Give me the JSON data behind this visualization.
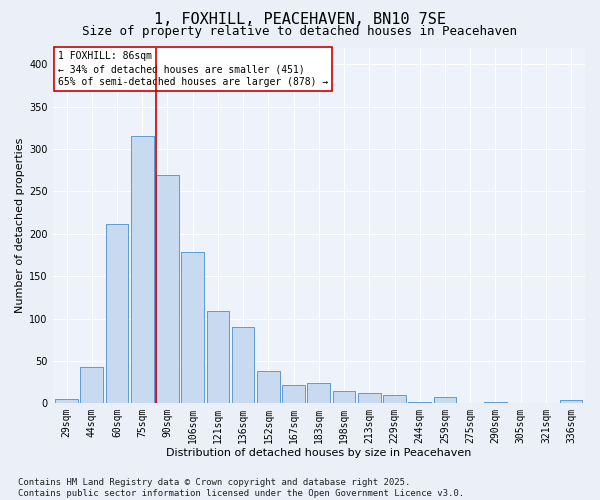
{
  "title": "1, FOXHILL, PEACEHAVEN, BN10 7SE",
  "subtitle": "Size of property relative to detached houses in Peacehaven",
  "xlabel": "Distribution of detached houses by size in Peacehaven",
  "ylabel": "Number of detached properties",
  "categories": [
    "29sqm",
    "44sqm",
    "60sqm",
    "75sqm",
    "90sqm",
    "106sqm",
    "121sqm",
    "136sqm",
    "152sqm",
    "167sqm",
    "183sqm",
    "198sqm",
    "213sqm",
    "229sqm",
    "244sqm",
    "259sqm",
    "275sqm",
    "290sqm",
    "305sqm",
    "321sqm",
    "336sqm"
  ],
  "values": [
    5,
    43,
    212,
    315,
    270,
    178,
    109,
    90,
    38,
    22,
    24,
    14,
    12,
    10,
    2,
    7,
    0,
    1,
    0,
    0,
    4
  ],
  "bar_color": "#c8daf0",
  "bar_edgecolor": "#5b9bd5",
  "vline_x_index": 4,
  "vline_color": "#cc0000",
  "annotation_box_text": "1 FOXHILL: 86sqm\n← 34% of detached houses are smaller (451)\n65% of semi-detached houses are larger (878) →",
  "annotation_box_edgecolor": "#cc0000",
  "annotation_fontsize": 7,
  "ylim": [
    0,
    420
  ],
  "yticks": [
    0,
    50,
    100,
    150,
    200,
    250,
    300,
    350,
    400
  ],
  "title_fontsize": 11,
  "subtitle_fontsize": 9,
  "xlabel_fontsize": 8,
  "ylabel_fontsize": 8,
  "tick_fontsize": 7,
  "bg_color": "#eaeff8",
  "plot_bg_color": "#eef2fa",
  "footer": "Contains HM Land Registry data © Crown copyright and database right 2025.\nContains public sector information licensed under the Open Government Licence v3.0.",
  "footer_fontsize": 6.5
}
